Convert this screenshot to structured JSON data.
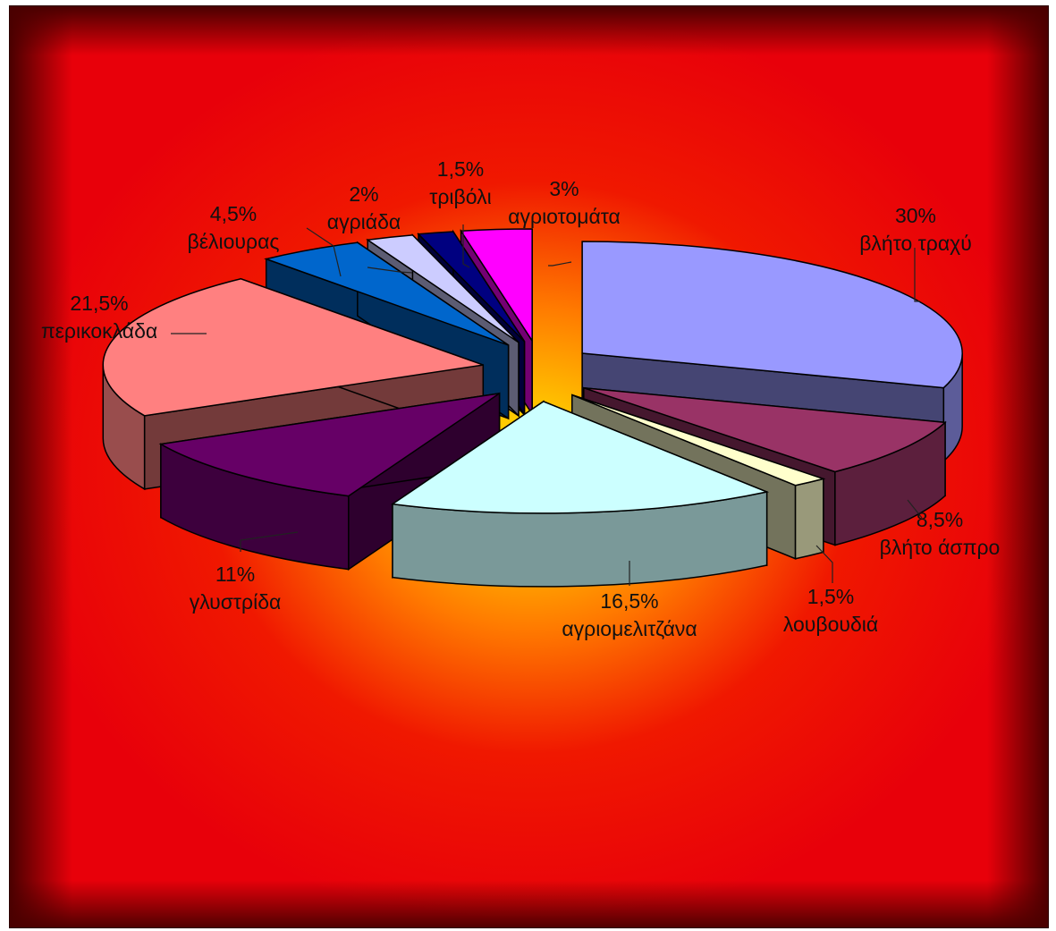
{
  "chart_data": {
    "type": "pie",
    "style": "3d-exploded",
    "title": "",
    "legend": "none",
    "slices": [
      {
        "label": "βλήτο τραχύ",
        "value": 30,
        "value_label": "30%",
        "color": "#9999ff"
      },
      {
        "label": "βλήτο άσπρο",
        "value": 8.5,
        "value_label": "8,5%",
        "color": "#993366"
      },
      {
        "label": "λουβουδιά",
        "value": 1.5,
        "value_label": "1,5%",
        "color": "#ffffcc"
      },
      {
        "label": "αγριομελιτζάνα",
        "value": 16.5,
        "value_label": "16,5%",
        "color": "#ccffff"
      },
      {
        "label": "γλυστρίδα",
        "value": 11,
        "value_label": "11%",
        "color": "#660066"
      },
      {
        "label": "περικοκλάδα",
        "value": 21.5,
        "value_label": "21,5%",
        "color": "#ff8080"
      },
      {
        "label": "βέλιουρας",
        "value": 4.5,
        "value_label": "4,5%",
        "color": "#0066cc"
      },
      {
        "label": "αγριάδα",
        "value": 2,
        "value_label": "2%",
        "color": "#ccccff"
      },
      {
        "label": "τριβόλι",
        "value": 1.5,
        "value_label": "1,5%",
        "color": "#000080"
      },
      {
        "label": "αγριοτομάτα",
        "value": 3,
        "value_label": "3%",
        "color": "#ff00ff"
      }
    ]
  }
}
